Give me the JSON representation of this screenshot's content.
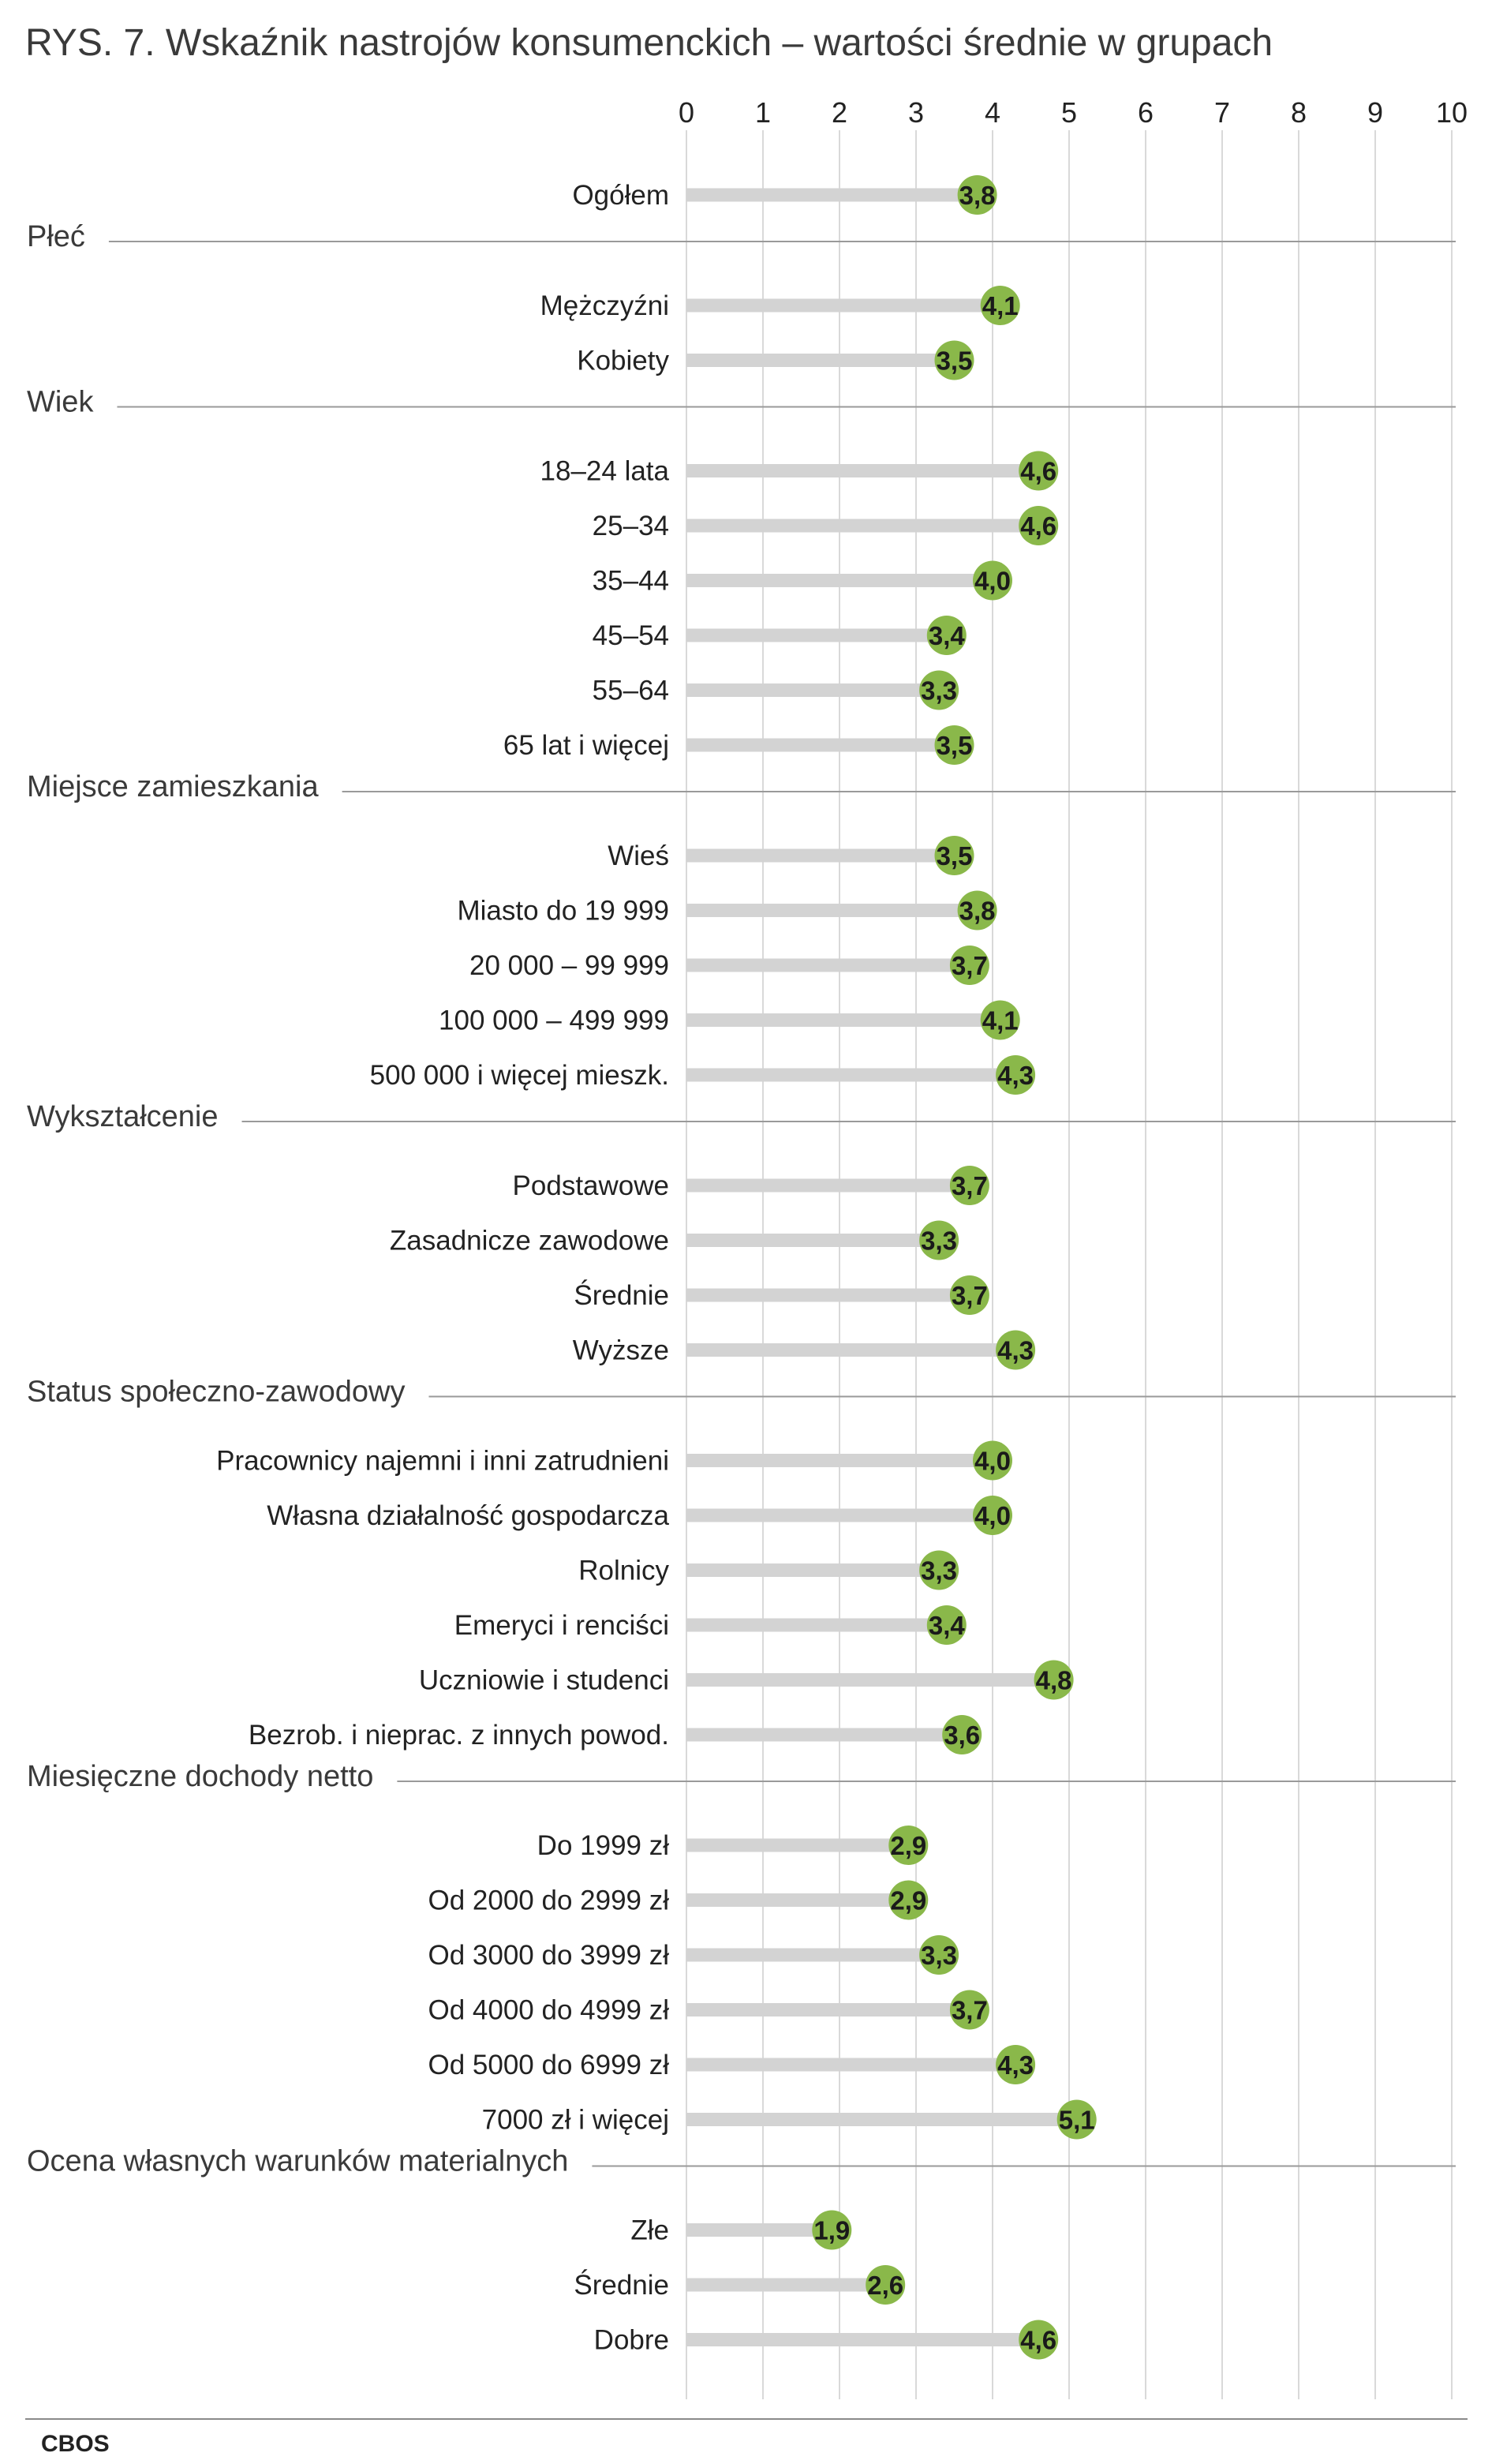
{
  "chart_data": {
    "type": "bar",
    "title": "RYS. 7. Wskaźnik nastrojów konsumenckich – wartości średnie w grupach",
    "xlim": [
      0,
      10
    ],
    "ticks": [
      "0",
      "1",
      "2",
      "3",
      "4",
      "5",
      "6",
      "7",
      "8",
      "9",
      "10"
    ],
    "grid": true,
    "colors": {
      "track": "#d3d3d3",
      "marker": "#8ab84a",
      "grid": "#d9d9d9",
      "separator": "#9a9a9a"
    },
    "overall": {
      "label": "Ogółem",
      "value": 3.8,
      "display": "3,8"
    },
    "groups": [
      {
        "name": "Płeć",
        "rows": [
          {
            "label": "Mężczyźni",
            "value": 4.1,
            "display": "4,1"
          },
          {
            "label": "Kobiety",
            "value": 3.5,
            "display": "3,5"
          }
        ]
      },
      {
        "name": "Wiek",
        "rows": [
          {
            "label": "18–24 lata",
            "value": 4.6,
            "display": "4,6"
          },
          {
            "label": "25–34",
            "value": 4.6,
            "display": "4,6"
          },
          {
            "label": "35–44",
            "value": 4.0,
            "display": "4,0"
          },
          {
            "label": "45–54",
            "value": 3.4,
            "display": "3,4"
          },
          {
            "label": "55–64",
            "value": 3.3,
            "display": "3,3"
          },
          {
            "label": "65 lat i więcej",
            "value": 3.5,
            "display": "3,5"
          }
        ]
      },
      {
        "name": "Miejsce zamieszkania",
        "rows": [
          {
            "label": "Wieś",
            "value": 3.5,
            "display": "3,5"
          },
          {
            "label": "Miasto do 19 999",
            "value": 3.8,
            "display": "3,8"
          },
          {
            "label": "20 000 – 99 999",
            "value": 3.7,
            "display": "3,7"
          },
          {
            "label": "100 000 – 499 999",
            "value": 4.1,
            "display": "4,1"
          },
          {
            "label": "500 000 i więcej mieszk.",
            "value": 4.3,
            "display": "4,3"
          }
        ]
      },
      {
        "name": "Wykształcenie",
        "rows": [
          {
            "label": "Podstawowe",
            "value": 3.7,
            "display": "3,7"
          },
          {
            "label": "Zasadnicze zawodowe",
            "value": 3.3,
            "display": "3,3"
          },
          {
            "label": "Średnie",
            "value": 3.7,
            "display": "3,7"
          },
          {
            "label": "Wyższe",
            "value": 4.3,
            "display": "4,3"
          }
        ]
      },
      {
        "name": "Status społeczno-zawodowy",
        "rows": [
          {
            "label": "Pracownicy najemni i inni zatrudnieni",
            "value": 4.0,
            "display": "4,0"
          },
          {
            "label": "Własna działalność gospodarcza",
            "value": 4.0,
            "display": "4,0"
          },
          {
            "label": "Rolnicy",
            "value": 3.3,
            "display": "3,3"
          },
          {
            "label": "Emeryci i renciści",
            "value": 3.4,
            "display": "3,4"
          },
          {
            "label": "Uczniowie i studenci",
            "value": 4.8,
            "display": "4,8"
          },
          {
            "label": "Bezrob. i nieprac. z innych powod.",
            "value": 3.6,
            "display": "3,6"
          }
        ]
      },
      {
        "name": "Miesięczne dochody netto",
        "rows": [
          {
            "label": "Do 1999 zł",
            "value": 2.9,
            "display": "2,9"
          },
          {
            "label": "Od 2000 do 2999 zł",
            "value": 2.9,
            "display": "2,9"
          },
          {
            "label": "Od 3000 do 3999 zł",
            "value": 3.3,
            "display": "3,3"
          },
          {
            "label": "Od 4000 do 4999 zł",
            "value": 3.7,
            "display": "3,7"
          },
          {
            "label": "Od 5000 do 6999 zł",
            "value": 4.3,
            "display": "4,3"
          },
          {
            "label": "7000 zł i więcej",
            "value": 5.1,
            "display": "5,1"
          }
        ]
      },
      {
        "name": "Ocena własnych warunków materialnych",
        "rows": [
          {
            "label": "Złe",
            "value": 1.9,
            "display": "1,9"
          },
          {
            "label": "Średnie",
            "value": 2.6,
            "display": "2,6"
          },
          {
            "label": "Dobre",
            "value": 4.6,
            "display": "4,6"
          }
        ]
      }
    ],
    "source": "CBOS"
  }
}
